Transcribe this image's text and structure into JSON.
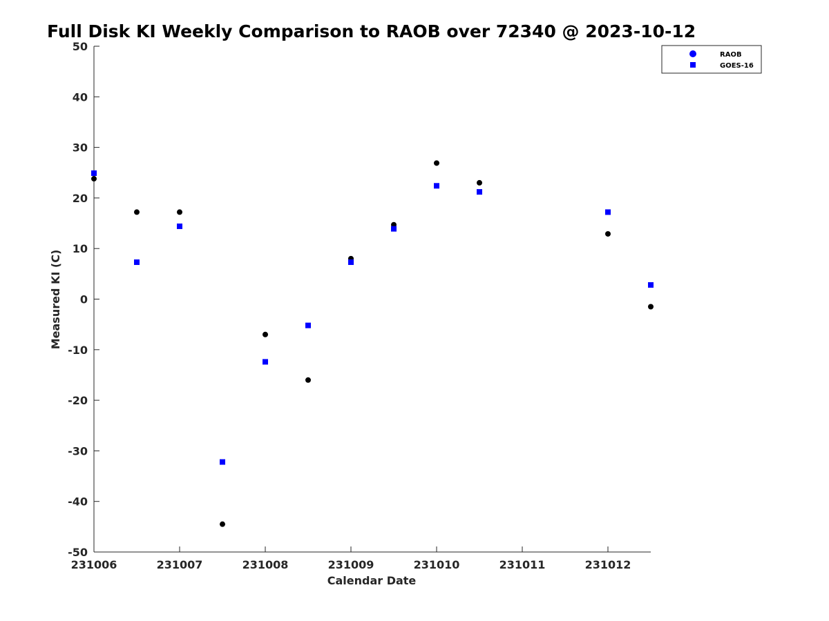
{
  "chart_data": {
    "type": "scatter",
    "title": "Full Disk KI Weekly Comparison to RAOB over 72340 @ 2023-10-12",
    "xlabel": "Calendar Date",
    "ylabel": "Measured KI (C)",
    "xlim": [
      0,
      6.5
    ],
    "ylim": [
      -50,
      50
    ],
    "xticks": [
      {
        "value": 0,
        "label": "231006"
      },
      {
        "value": 1,
        "label": "231007"
      },
      {
        "value": 2,
        "label": "231008"
      },
      {
        "value": 3,
        "label": "231009"
      },
      {
        "value": 4,
        "label": "231010"
      },
      {
        "value": 5,
        "label": "231011"
      },
      {
        "value": 6,
        "label": "231012"
      }
    ],
    "yticks": [
      50,
      40,
      30,
      20,
      10,
      0,
      -10,
      -20,
      -30,
      -40,
      -50
    ],
    "grid": false,
    "legend_position": "top-right",
    "series": [
      {
        "name": "RAOB",
        "marker": "circle",
        "color": "#000000",
        "legend_color": "#0000ff",
        "points": [
          {
            "x": 0,
            "y": 23.8
          },
          {
            "x": 0.5,
            "y": 17.2
          },
          {
            "x": 1,
            "y": 17.2
          },
          {
            "x": 1.5,
            "y": -44.5
          },
          {
            "x": 2,
            "y": -7
          },
          {
            "x": 2.5,
            "y": -16
          },
          {
            "x": 3,
            "y": 8
          },
          {
            "x": 3.5,
            "y": 14.7
          },
          {
            "x": 4,
            "y": 26.9
          },
          {
            "x": 4.5,
            "y": 23
          },
          {
            "x": 6,
            "y": 12.9
          },
          {
            "x": 6.5,
            "y": -1.5
          }
        ]
      },
      {
        "name": "GOES-16",
        "marker": "square",
        "color": "#0000ff",
        "points": [
          {
            "x": 0,
            "y": 24.9
          },
          {
            "x": 0.5,
            "y": 7.3
          },
          {
            "x": 1,
            "y": 14.4
          },
          {
            "x": 1.5,
            "y": -32.2
          },
          {
            "x": 2,
            "y": -12.4
          },
          {
            "x": 2.5,
            "y": -5.2
          },
          {
            "x": 3,
            "y": 7.3
          },
          {
            "x": 3.5,
            "y": 13.9
          },
          {
            "x": 4,
            "y": 22.4
          },
          {
            "x": 4.5,
            "y": 21.2
          },
          {
            "x": 6,
            "y": 17.2
          },
          {
            "x": 6.5,
            "y": 2.8
          }
        ]
      }
    ]
  }
}
